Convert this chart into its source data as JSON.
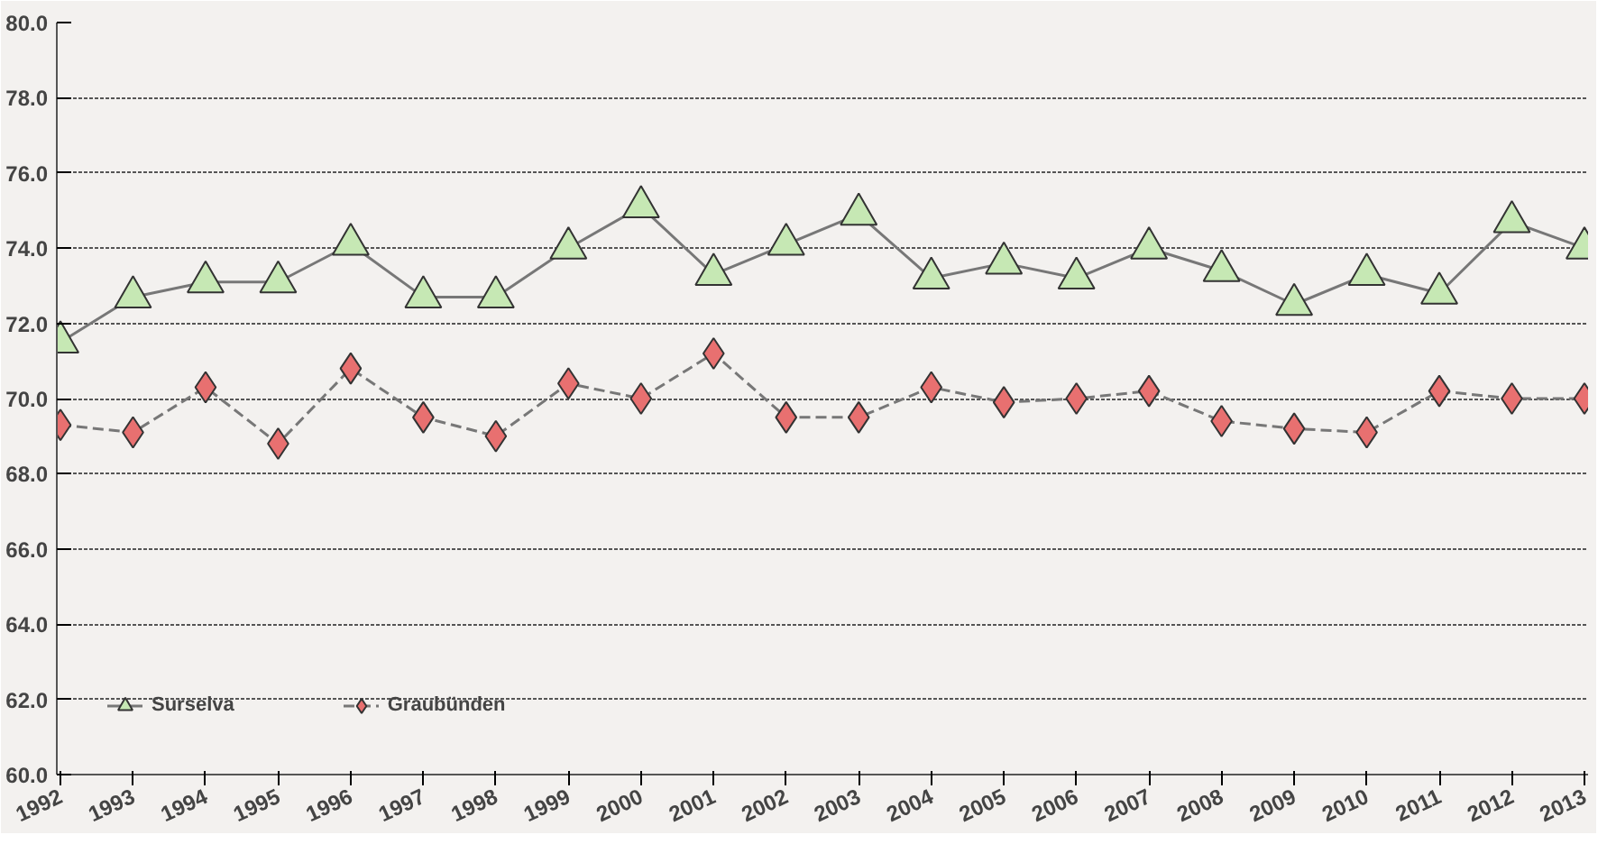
{
  "chart_data": {
    "type": "line",
    "categories": [
      "1992",
      "1993",
      "1994",
      "1995",
      "1996",
      "1997",
      "1998",
      "1999",
      "2000",
      "2001",
      "2002",
      "2003",
      "2004",
      "2005",
      "2006",
      "2007",
      "2008",
      "2009",
      "2010",
      "2011",
      "2012",
      "2013"
    ],
    "series": [
      {
        "name": "Surselva",
        "color": "#c6e8b4",
        "marker": "triangle",
        "line_style": "solid",
        "values": [
          71.5,
          72.7,
          73.1,
          73.1,
          74.1,
          72.7,
          72.7,
          74.0,
          75.1,
          73.3,
          74.1,
          74.9,
          73.2,
          73.6,
          73.2,
          74.0,
          73.4,
          72.5,
          73.3,
          72.8,
          74.7,
          74.0
        ]
      },
      {
        "name": "Graubünden",
        "color": "#e87070",
        "marker": "diamond",
        "line_style": "dashed",
        "values": [
          69.3,
          69.1,
          70.3,
          68.8,
          70.8,
          69.5,
          69.0,
          70.4,
          70.0,
          71.2,
          69.5,
          69.5,
          70.3,
          69.9,
          70.0,
          70.2,
          69.4,
          69.2,
          69.1,
          70.2,
          70.0,
          70.0
        ]
      }
    ],
    "ylim": [
      60,
      80
    ],
    "yticks": [
      {
        "value": 60,
        "label": "60.0"
      },
      {
        "value": 62,
        "label": "62.0"
      },
      {
        "value": 64,
        "label": "64.0"
      },
      {
        "value": 66,
        "label": "66.0"
      },
      {
        "value": 68,
        "label": "68.0"
      },
      {
        "value": 70,
        "label": "70.0"
      },
      {
        "value": 72,
        "label": "72.0"
      },
      {
        "value": 74,
        "label": "74.0"
      },
      {
        "value": 76,
        "label": "76.0"
      },
      {
        "value": 78,
        "label": "78.0"
      },
      {
        "value": 80,
        "label": "80.0"
      }
    ],
    "grid": "y",
    "legend": "bottom left"
  }
}
